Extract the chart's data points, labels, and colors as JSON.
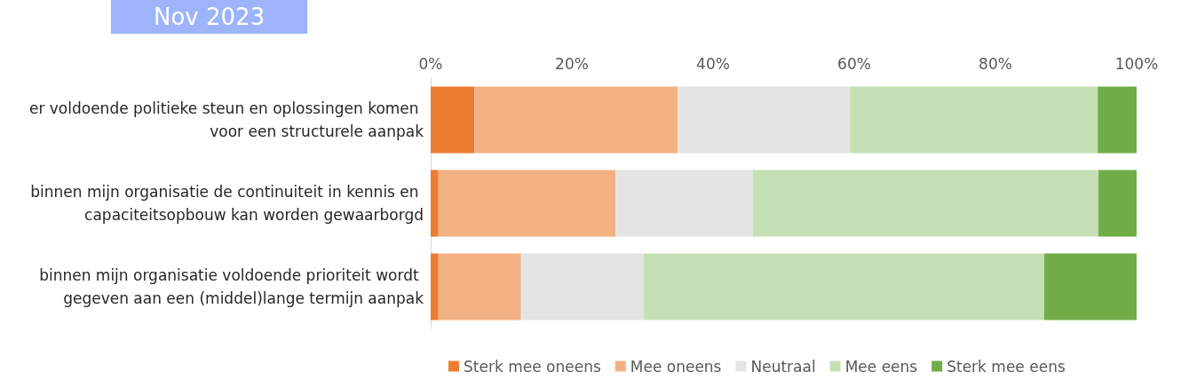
{
  "chart_data": {
    "type": "bar",
    "orientation": "horizontal",
    "stacked": true,
    "title": "Nov 2023",
    "categories": [
      "er voldoende politieke steun en oplossingen komen voor een structurele aanpak",
      "binnen mijn organisatie de continuiteit in kennis en capaciteitsopbouw kan worden gewaarborgd",
      "binnen mijn organisatie voldoende prioriteit wordt gegeven aan een (middel)lange termijn aanpak"
    ],
    "series": [
      {
        "name": "Sterk mee oneens",
        "color": "#ed7d31",
        "values": [
          6.2,
          1.1,
          1.1
        ]
      },
      {
        "name": "Mee oneens",
        "color": "#f4b183",
        "values": [
          28.8,
          25.1,
          11.7
        ]
      },
      {
        "name": "Neutraal",
        "color": "#e4e4e4",
        "values": [
          24.4,
          19.4,
          17.4
        ]
      },
      {
        "name": "Mee eens",
        "color": "#c5e0b4",
        "values": [
          35.1,
          49.0,
          56.7
        ]
      },
      {
        "name": "Sterk mee eens",
        "color": "#70ad47",
        "values": [
          5.5,
          5.4,
          13.1
        ]
      }
    ],
    "xlim": [
      0,
      100
    ],
    "xticks": [
      {
        "value": 0,
        "label": "0%"
      },
      {
        "value": 20,
        "label": "20%"
      },
      {
        "value": 40,
        "label": "40%"
      },
      {
        "value": 60,
        "label": "60%"
      },
      {
        "value": 80,
        "label": "80%"
      },
      {
        "value": 100,
        "label": "100%"
      }
    ],
    "grid": false,
    "legend": "bottom"
  }
}
